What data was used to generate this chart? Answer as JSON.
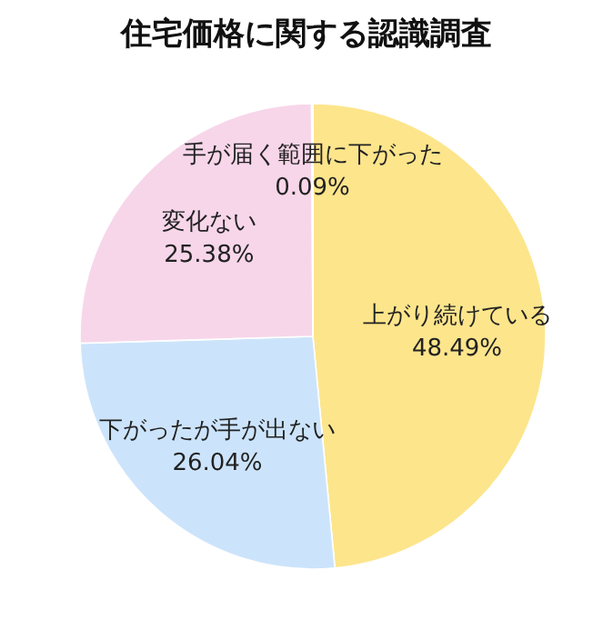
{
  "chart_data": {
    "type": "pie",
    "title": "住宅価格に関する認識調査",
    "categories": [
      "上がり続けている",
      "下がったが手が出ない",
      "変化ない",
      "手が届く範囲に下がった"
    ],
    "values": [
      48.49,
      26.04,
      25.38,
      0.09
    ],
    "colors": [
      "#fde58c",
      "#cce4fb",
      "#f7d6ea",
      "#e8e8e8"
    ],
    "value_labels": [
      "48.49%",
      "26.04%",
      "25.38%",
      "0.09%"
    ]
  }
}
